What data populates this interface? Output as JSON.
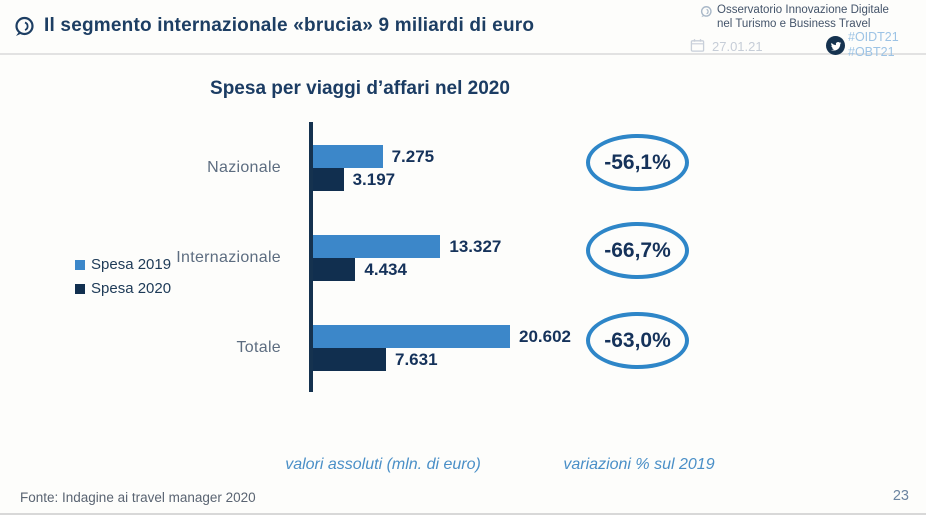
{
  "header": {
    "title": "Il segmento internazionale «brucia»  9 miliardi di euro",
    "org": {
      "line1": "Osservatorio Innovazione Digitale",
      "line2": "nel Turismo e Business Travel",
      "date": "27.01.21",
      "hashtag1": "#OIDT21",
      "hashtag2": "#OBT21"
    }
  },
  "chart_data": {
    "type": "bar",
    "orientation": "horizontal",
    "title": "Spesa per viaggi d’affari nel 2020",
    "unit": "mln. di euro",
    "categories": [
      "Nazionale",
      "Internazionale",
      "Totale"
    ],
    "series": [
      {
        "name": "Spesa 2019",
        "color": "#3c87c9",
        "values": [
          7275,
          13327,
          20602
        ],
        "labels": [
          "7.275",
          "13.327",
          "20.602"
        ]
      },
      {
        "name": "Spesa 2020",
        "color": "#112f4f",
        "values": [
          3197,
          4434,
          7631
        ],
        "labels": [
          "3.197",
          "4.434",
          "7.631"
        ]
      }
    ],
    "variations": {
      "label": "variazioni % sul 2019",
      "values": [
        "-56,1%",
        "-66,7%",
        "-63,0%"
      ]
    },
    "axis_note": "valori assoluti (mln. di euro)",
    "xlim": [
      0,
      20602
    ],
    "grid": false,
    "legend_position": "left"
  },
  "footer": {
    "source": "Fonte: Indagine ai travel manager 2020",
    "page": "23"
  },
  "colors": {
    "accent_light_blue": "#3c87c9",
    "accent_dark_navy": "#112f4f",
    "title_navy": "#1d3e63",
    "oval_stroke": "#2e86c8",
    "hashtag_blue": "#9cc3e5",
    "date_gray": "#c6cdd7",
    "category_gray": "#5d6d80"
  }
}
